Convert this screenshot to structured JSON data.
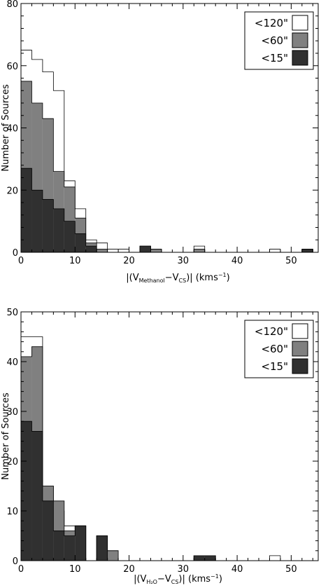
{
  "chart_data": [
    {
      "type": "bar",
      "title": "",
      "ylabel": "Number of Sources",
      "xlabel_parts": [
        "|(V",
        "Methanol",
        "−V",
        "CS",
        ")|  (kms",
        "−1",
        ")"
      ],
      "xlim": [
        0,
        55
      ],
      "ylim": [
        0,
        80
      ],
      "xticks": [
        0,
        10,
        20,
        30,
        40,
        50
      ],
      "yticks": [
        0,
        20,
        40,
        60,
        80
      ],
      "bin_width": 2,
      "grid": false,
      "legend_position": "top-right",
      "series": [
        {
          "name": "<120\"",
          "color": "#ffffff",
          "values": [
            65,
            62,
            58,
            52,
            23,
            14,
            4,
            3,
            1,
            1,
            0,
            2,
            1,
            0,
            0,
            0,
            2,
            0,
            0,
            0,
            0,
            0,
            0,
            1,
            0,
            0,
            1
          ]
        },
        {
          "name": "<60\"",
          "color": "#808080",
          "values": [
            55,
            48,
            43,
            26,
            21,
            11,
            3,
            1,
            0,
            0,
            0,
            1,
            1,
            0,
            0,
            0,
            1,
            0,
            0,
            0,
            0,
            0,
            0,
            0,
            0,
            0,
            1
          ]
        },
        {
          "name": "<15\"",
          "color": "#303030",
          "values": [
            27,
            20,
            17,
            14,
            10,
            6,
            2,
            0,
            0,
            0,
            0,
            2,
            0,
            0,
            0,
            0,
            0,
            0,
            0,
            0,
            0,
            0,
            0,
            0,
            0,
            0,
            1
          ]
        }
      ]
    },
    {
      "type": "bar",
      "title": "",
      "ylabel": "Number of Sources",
      "xlabel_parts": [
        "|(V",
        "H₂O",
        "−V",
        "CS",
        ")|  (kms",
        "−1",
        ")"
      ],
      "xlim": [
        0,
        55
      ],
      "ylim": [
        0,
        50
      ],
      "xticks": [
        0,
        10,
        20,
        30,
        40,
        50
      ],
      "yticks": [
        0,
        10,
        20,
        30,
        40,
        50
      ],
      "bin_width": 2,
      "grid": false,
      "legend_position": "top-right",
      "series": [
        {
          "name": "<120\"",
          "color": "#ffffff",
          "values": [
            45,
            45,
            15,
            10,
            7,
            7,
            0,
            5,
            2,
            0,
            0,
            0,
            0,
            0,
            0,
            0,
            1,
            1,
            0,
            0,
            0,
            0,
            0,
            1,
            0,
            0,
            0
          ]
        },
        {
          "name": "<60\"",
          "color": "#808080",
          "values": [
            41,
            43,
            15,
            12,
            6,
            7,
            0,
            5,
            2,
            0,
            0,
            0,
            0,
            0,
            0,
            0,
            1,
            1,
            0,
            0,
            0,
            0,
            0,
            0,
            0,
            0,
            0
          ]
        },
        {
          "name": "<15\"",
          "color": "#303030",
          "values": [
            28,
            26,
            12,
            6,
            5,
            7,
            0,
            5,
            0,
            0,
            0,
            0,
            0,
            0,
            0,
            0,
            1,
            1,
            0,
            0,
            0,
            0,
            0,
            0,
            0,
            0,
            0
          ]
        }
      ]
    }
  ]
}
